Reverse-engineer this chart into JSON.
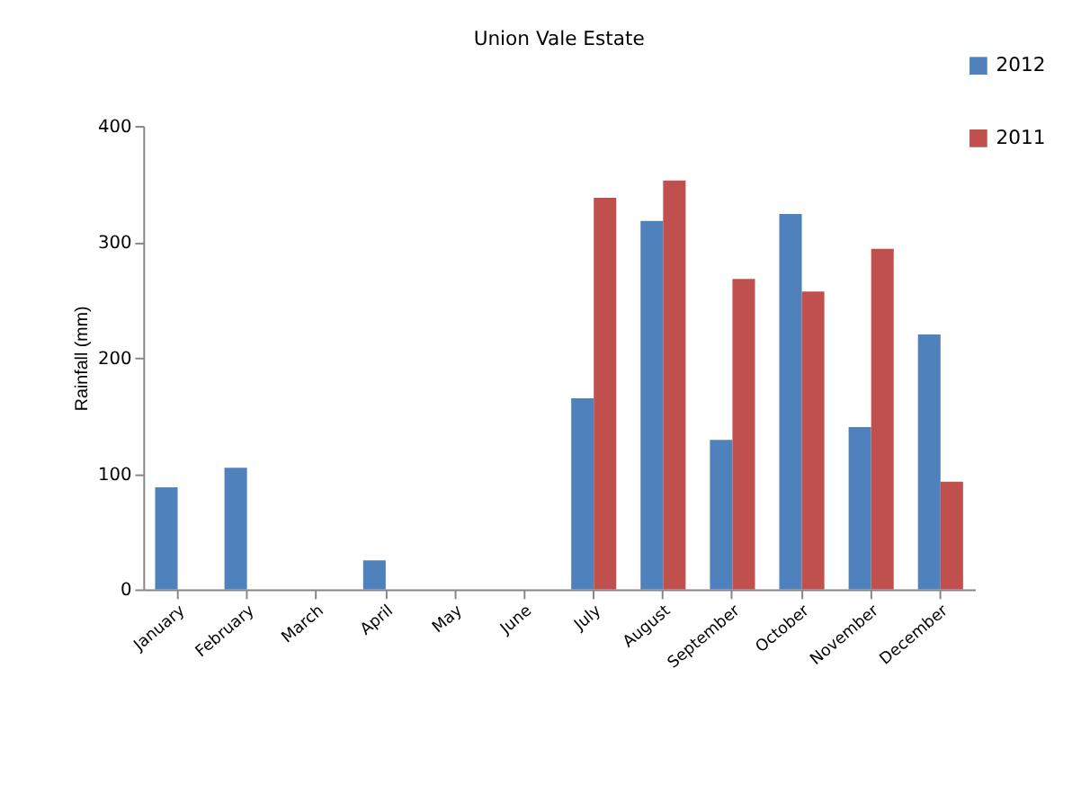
{
  "chart_data": {
    "type": "bar",
    "title": "Union Vale Estate",
    "ylabel": "Rainfall (mm)",
    "categories": [
      "January",
      "February",
      "March",
      "April",
      "May",
      "June",
      "July",
      "August",
      "September",
      "October",
      "November",
      "December"
    ],
    "series": [
      {
        "name": "2012",
        "color": "#4f81bd",
        "values": [
          88,
          105,
          0,
          25,
          0,
          0,
          165,
          318,
          129,
          324,
          140,
          220
        ]
      },
      {
        "name": "2011",
        "color": "#c0504d",
        "values": [
          null,
          null,
          null,
          null,
          null,
          null,
          338,
          353,
          268,
          257,
          294,
          93
        ]
      }
    ],
    "ylim": [
      0,
      400
    ],
    "yticks": [
      0,
      100,
      200,
      300,
      400
    ],
    "grid": false,
    "legend": "top right"
  }
}
